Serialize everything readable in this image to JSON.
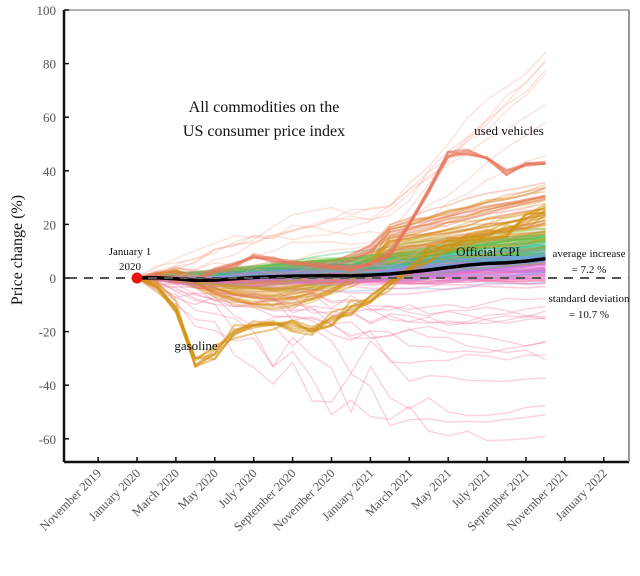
{
  "chart_data": {
    "type": "line",
    "title": "All commodities on the US consumer price index",
    "title_lines": [
      "All commodities on the",
      "US consumer price index"
    ],
    "xlabel": "",
    "ylabel": "Price change (%)",
    "ylim": [
      -70,
      100
    ],
    "yticks": [
      100,
      80,
      60,
      40,
      20,
      0,
      -20,
      -40,
      -60
    ],
    "ytick_labels": [
      "100",
      "80",
      "60",
      "40",
      "20",
      "0",
      "-20",
      "-40",
      "-60"
    ],
    "xlim_months_from_jan2020": [
      -3.5,
      25.6
    ],
    "xticks_months_from_jan2020": [
      -2,
      0,
      2,
      4,
      6,
      8,
      10,
      12,
      14,
      16,
      18,
      20,
      22,
      24
    ],
    "xtick_labels": [
      "November 2019",
      "January 2020",
      "March 2020",
      "May 2020",
      "July 2020",
      "September 2020",
      "November 2020",
      "January 2021",
      "March 2021",
      "May 2021",
      "July 2021",
      "September 2021",
      "November 2021",
      "January 2022"
    ],
    "grid": false,
    "legend": "none",
    "reference_line": {
      "y": 0,
      "style": "dashed",
      "color": "#555555"
    },
    "start_point": {
      "month": 0,
      "value": 0,
      "color": "#ee1111",
      "label_lines": [
        "January 1",
        "2020"
      ]
    },
    "months": [
      0,
      1,
      2,
      3,
      4,
      5,
      6,
      7,
      8,
      9,
      10,
      11,
      12,
      13,
      14,
      15,
      16,
      17,
      18,
      19,
      20,
      21
    ],
    "series": [
      {
        "name": "Official CPI",
        "color": "#000000",
        "values": [
          0,
          0.1,
          -0.3,
          -0.9,
          -0.8,
          -0.3,
          0.2,
          0.5,
          0.7,
          0.8,
          0.9,
          0.8,
          1.1,
          1.5,
          2.2,
          3.0,
          3.9,
          4.8,
          5.4,
          5.7,
          6.3,
          7.2
        ]
      },
      {
        "name": "used vehicles",
        "color": "#e8735a",
        "values": [
          0,
          0.5,
          -0.5,
          -1,
          2,
          5,
          8,
          7,
          6,
          5,
          4,
          3,
          5,
          9,
          20,
          33,
          46,
          47,
          45,
          40,
          42,
          43
        ]
      },
      {
        "name": "gasoline",
        "color": "#d4900e",
        "values": [
          0,
          -2,
          -12,
          -32,
          -27,
          -20,
          -18,
          -17,
          -18,
          -19,
          -16,
          -12,
          -8,
          -3,
          3,
          8,
          12,
          15,
          17,
          19,
          21,
          26
        ]
      }
    ],
    "annotations": [
      {
        "text": "used vehicles",
        "near": "used vehicles peak"
      },
      {
        "text": "gasoline",
        "near": "gasoline trough"
      },
      {
        "text": "Official CPI",
        "near": "CPI line end"
      },
      {
        "text": "average increase",
        "value": "= 7.2 %"
      },
      {
        "text": "standard deviation",
        "value": "= 10.7 %"
      }
    ],
    "summary": {
      "average_increase_pct": 7.2,
      "standard_deviation_pct": 10.7
    },
    "category_colors": [
      "#ff6fa4",
      "#f06ad8",
      "#b27cf2",
      "#6ea8f0",
      "#20b8c0",
      "#2fbf6a",
      "#6cc038",
      "#c8a020",
      "#d4900e",
      "#e8735a"
    ],
    "background_lines_count": 220
  },
  "labels": {
    "title_line1": "All commodities on the",
    "title_line2": "US consumer price index",
    "ylabel": "Price change (%)",
    "start_line1": "January 1",
    "start_line2": "2020",
    "used_vehicles": "used vehicles",
    "gasoline": "gasoline",
    "official_cpi": "Official CPI",
    "avg_label": "average increase",
    "avg_value": "=  7.2 %",
    "sd_label": "standard deviation",
    "sd_value": "=  10.7 %"
  }
}
